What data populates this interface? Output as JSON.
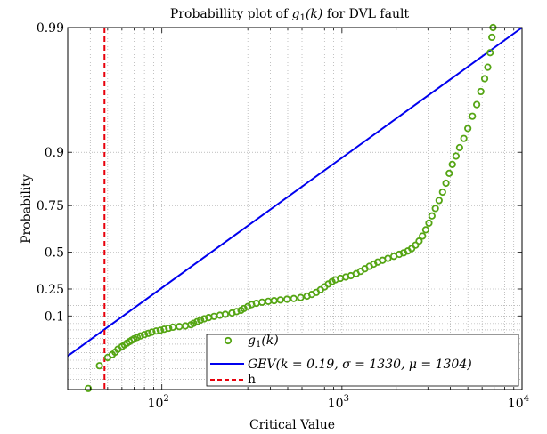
{
  "chart_data": {
    "type": "scatter",
    "title": "Probabillity plot of g1(k) for DVL fault",
    "title_prefix": "Probabillity plot of ",
    "title_var": "g",
    "title_sub": "1",
    "title_arg": "(k)",
    "title_suffix": " for DVL fault",
    "xlabel": "Critical Value",
    "ylabel": "Probability",
    "xscale": "log",
    "yscale": "gev-probability",
    "xlim": [
      30,
      10000
    ],
    "ylim": [
      0.0001,
      0.99
    ],
    "x_ticks": [
      {
        "value": 100,
        "base": "10",
        "exp": "2"
      },
      {
        "value": 1000,
        "base": "10",
        "exp": "3"
      },
      {
        "value": 10000,
        "base": "10",
        "exp": "4"
      }
    ],
    "y_ticks": [
      {
        "value": 0.99,
        "label": "0.99"
      },
      {
        "value": 0.9,
        "label": "0.9"
      },
      {
        "value": 0.75,
        "label": "0.75"
      },
      {
        "value": 0.5,
        "label": "0.5"
      },
      {
        "value": 0.25,
        "label": "0.25"
      },
      {
        "value": 0.1,
        "label": "0.1"
      }
    ],
    "grid": true,
    "legend_position": "bottom-right",
    "legend": [
      {
        "key": "data",
        "label": "g1(k)",
        "var": "g",
        "sub": "1",
        "arg": "(k)"
      },
      {
        "key": "fit",
        "label": "GEV(k = 0.19, σ = 1330, μ = 1304)"
      },
      {
        "key": "threshold",
        "label": "h"
      }
    ],
    "colors": {
      "data": "#55a514",
      "fit": "#0000ee",
      "threshold": "#e8000b"
    },
    "series": {
      "data": {
        "marker": "circle-open",
        "points": [
          [
            39,
            0.00012
          ],
          [
            45,
            0.0028
          ],
          [
            50,
            0.0065
          ],
          [
            53,
            0.0085
          ],
          [
            55,
            0.0105
          ],
          [
            57,
            0.0135
          ],
          [
            60,
            0.0165
          ],
          [
            62,
            0.019
          ],
          [
            64,
            0.0215
          ],
          [
            66,
            0.024
          ],
          [
            68,
            0.0265
          ],
          [
            70,
            0.029
          ],
          [
            73,
            0.032
          ],
          [
            76,
            0.035
          ],
          [
            80,
            0.038
          ],
          [
            84,
            0.041
          ],
          [
            88,
            0.044
          ],
          [
            93,
            0.047
          ],
          [
            98,
            0.049
          ],
          [
            103,
            0.052
          ],
          [
            109,
            0.055
          ],
          [
            115,
            0.058
          ],
          [
            125,
            0.06
          ],
          [
            135,
            0.062
          ],
          [
            145,
            0.066
          ],
          [
            150,
            0.071
          ],
          [
            157,
            0.077
          ],
          [
            164,
            0.083
          ],
          [
            172,
            0.088
          ],
          [
            182,
            0.093
          ],
          [
            195,
            0.098
          ],
          [
            210,
            0.103
          ],
          [
            225,
            0.107
          ],
          [
            245,
            0.113
          ],
          [
            260,
            0.12
          ],
          [
            275,
            0.126
          ],
          [
            285,
            0.135
          ],
          [
            300,
            0.145
          ],
          [
            315,
            0.156
          ],
          [
            335,
            0.163
          ],
          [
            360,
            0.169
          ],
          [
            390,
            0.174
          ],
          [
            420,
            0.178
          ],
          [
            455,
            0.182
          ],
          [
            495,
            0.186
          ],
          [
            540,
            0.19
          ],
          [
            590,
            0.196
          ],
          [
            640,
            0.205
          ],
          [
            680,
            0.215
          ],
          [
            720,
            0.228
          ],
          [
            760,
            0.245
          ],
          [
            800,
            0.264
          ],
          [
            840,
            0.283
          ],
          [
            880,
            0.299
          ],
          [
            920,
            0.312
          ],
          [
            980,
            0.322
          ],
          [
            1050,
            0.331
          ],
          [
            1120,
            0.34
          ],
          [
            1200,
            0.354
          ],
          [
            1270,
            0.37
          ],
          [
            1340,
            0.388
          ],
          [
            1420,
            0.405
          ],
          [
            1500,
            0.42
          ],
          [
            1580,
            0.434
          ],
          [
            1680,
            0.446
          ],
          [
            1800,
            0.459
          ],
          [
            1940,
            0.473
          ],
          [
            2080,
            0.486
          ],
          [
            2200,
            0.496
          ],
          [
            2320,
            0.508
          ],
          [
            2440,
            0.524
          ],
          [
            2560,
            0.545
          ],
          [
            2680,
            0.57
          ],
          [
            2800,
            0.6
          ],
          [
            2920,
            0.635
          ],
          [
            3040,
            0.67
          ],
          [
            3160,
            0.705
          ],
          [
            3300,
            0.738
          ],
          [
            3460,
            0.77
          ],
          [
            3620,
            0.8
          ],
          [
            3780,
            0.828
          ],
          [
            3940,
            0.855
          ],
          [
            4100,
            0.876
          ],
          [
            4300,
            0.893
          ],
          [
            4500,
            0.908
          ],
          [
            4750,
            0.922
          ],
          [
            5000,
            0.935
          ],
          [
            5300,
            0.948
          ],
          [
            5600,
            0.958
          ],
          [
            5900,
            0.967
          ],
          [
            6200,
            0.974
          ],
          [
            6450,
            0.979
          ],
          [
            6650,
            0.984
          ],
          [
            6800,
            0.988
          ],
          [
            6900,
            0.99
          ]
        ]
      },
      "fit": {
        "x_start": 30,
        "y_start": 0.0075,
        "x_end": 10000,
        "y_end": 0.99
      },
      "threshold": {
        "x": 48
      }
    }
  }
}
